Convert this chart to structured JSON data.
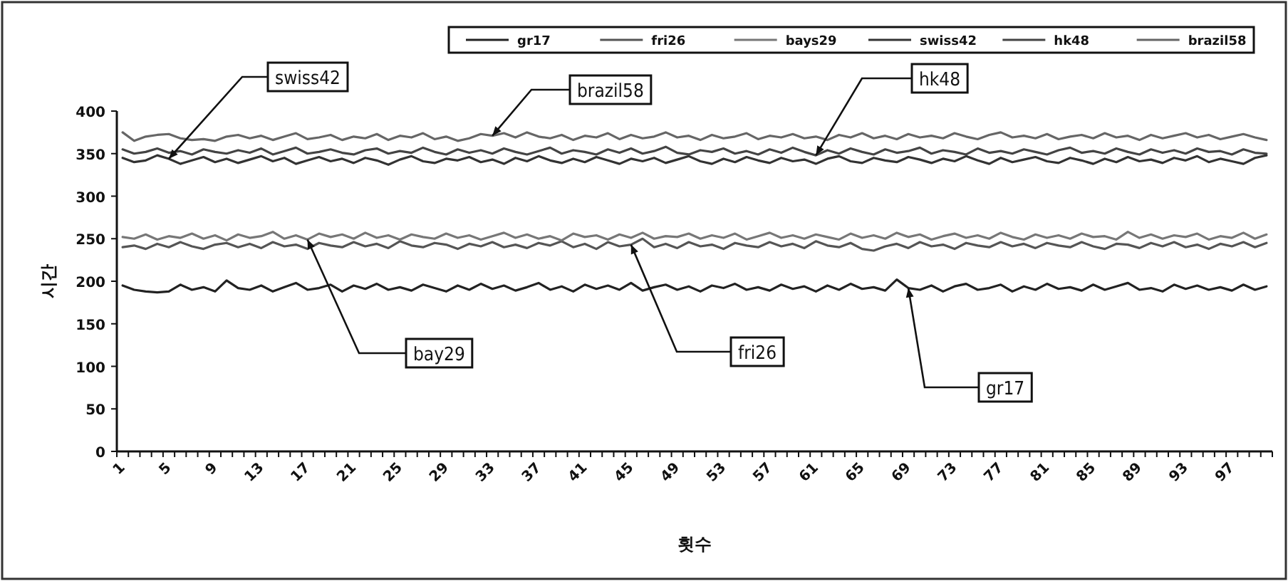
{
  "chart_data": {
    "type": "line",
    "xlabel": "횟수",
    "ylabel": "시간",
    "categories": [
      "1",
      null,
      null,
      null,
      "5",
      null,
      null,
      null,
      "9",
      null,
      null,
      null,
      "13",
      null,
      null,
      null,
      "17",
      null,
      null,
      null,
      "21",
      null,
      null,
      null,
      "25",
      null,
      null,
      null,
      "29",
      null,
      null,
      null,
      "33",
      null,
      null,
      null,
      "37",
      null,
      null,
      null,
      "41",
      null,
      null,
      null,
      "45",
      null,
      null,
      null,
      "49",
      null,
      null,
      null,
      "53",
      null,
      null,
      null,
      "57",
      null,
      null,
      null,
      "61",
      null,
      null,
      null,
      "65",
      null,
      null,
      null,
      "69",
      null,
      null,
      null,
      "73",
      null,
      null,
      null,
      "77",
      null,
      null,
      null,
      "81",
      null,
      null,
      null,
      "85",
      null,
      null,
      null,
      "89",
      null,
      null,
      null,
      "93",
      null,
      null,
      null,
      "97",
      null,
      null,
      null
    ],
    "ylim": [
      0,
      400
    ],
    "yticks": [
      0,
      50,
      100,
      150,
      200,
      250,
      300,
      350,
      400
    ],
    "legend": "top",
    "line_style": "solid",
    "series": [
      {
        "name": "gr17",
        "color": "#222222",
        "values": [
          195,
          190,
          188,
          187,
          188,
          196,
          190,
          193,
          188,
          201,
          192,
          190,
          195,
          188,
          193,
          198,
          190,
          192,
          196,
          188,
          195,
          191,
          197,
          190,
          193,
          189,
          196,
          192,
          188,
          195,
          190,
          197,
          191,
          195,
          189,
          193,
          198,
          190,
          194,
          188,
          196,
          191,
          195,
          190,
          198,
          189,
          193,
          196,
          190,
          194,
          188,
          195,
          192,
          197,
          190,
          193,
          189,
          196,
          191,
          194,
          188,
          195,
          190,
          197,
          191,
          193,
          189,
          202,
          192,
          190,
          195,
          188,
          194,
          197,
          190,
          192,
          196,
          188,
          194,
          190,
          197,
          191,
          193,
          189,
          196,
          190,
          194,
          198,
          190,
          192,
          188,
          196,
          191,
          195,
          190,
          193,
          189,
          196,
          190,
          194
        ]
      },
      {
        "name": "fri26",
        "color": "#555555",
        "values": [
          240,
          242,
          238,
          244,
          240,
          246,
          241,
          238,
          243,
          245,
          240,
          244,
          239,
          246,
          241,
          243,
          238,
          245,
          242,
          240,
          246,
          241,
          244,
          239,
          247,
          242,
          240,
          245,
          243,
          238,
          244,
          241,
          246,
          240,
          243,
          239,
          245,
          242,
          247,
          240,
          244,
          238,
          246,
          241,
          243,
          250,
          240,
          244,
          239,
          246,
          241,
          243,
          238,
          245,
          242,
          240,
          246,
          241,
          244,
          239,
          247,
          242,
          240,
          245,
          238,
          236,
          241,
          244,
          239,
          246,
          241,
          243,
          238,
          245,
          242,
          240,
          246,
          241,
          244,
          239,
          245,
          242,
          240,
          246,
          241,
          238,
          244,
          243,
          239,
          245,
          241,
          246,
          240,
          243,
          238,
          244,
          241,
          246,
          240,
          245
        ]
      },
      {
        "name": "bays29",
        "color": "#777777",
        "values": [
          252,
          250,
          255,
          249,
          253,
          251,
          256,
          250,
          254,
          248,
          255,
          251,
          253,
          258,
          250,
          254,
          249,
          256,
          252,
          255,
          250,
          257,
          251,
          254,
          249,
          255,
          252,
          250,
          256,
          251,
          254,
          249,
          253,
          257,
          251,
          255,
          250,
          253,
          248,
          256,
          252,
          254,
          249,
          255,
          251,
          257,
          250,
          253,
          252,
          256,
          250,
          254,
          251,
          256,
          249,
          253,
          257,
          251,
          254,
          250,
          255,
          252,
          249,
          256,
          251,
          254,
          250,
          257,
          252,
          255,
          249,
          253,
          256,
          251,
          254,
          250,
          257,
          252,
          249,
          255,
          251,
          254,
          250,
          256,
          252,
          253,
          249,
          258,
          251,
          255,
          250,
          254,
          252,
          256,
          249,
          253,
          251,
          257,
          250,
          255
        ]
      },
      {
        "name": "swiss42",
        "color": "#333333",
        "values": [
          345,
          340,
          342,
          348,
          344,
          338,
          342,
          346,
          340,
          344,
          339,
          343,
          347,
          341,
          345,
          338,
          342,
          346,
          341,
          344,
          339,
          345,
          342,
          337,
          343,
          347,
          341,
          339,
          344,
          342,
          346,
          340,
          343,
          338,
          345,
          341,
          347,
          342,
          339,
          344,
          340,
          346,
          342,
          338,
          344,
          341,
          345,
          339,
          343,
          347,
          341,
          338,
          344,
          340,
          346,
          342,
          339,
          345,
          341,
          343,
          338,
          344,
          347,
          341,
          339,
          345,
          342,
          340,
          346,
          343,
          339,
          344,
          341,
          347,
          342,
          338,
          345,
          340,
          343,
          346,
          341,
          339,
          345,
          342,
          338,
          344,
          340,
          346,
          341,
          343,
          339,
          345,
          342,
          347,
          340,
          344,
          341,
          338,
          345,
          348
        ]
      },
      {
        "name": "hk48",
        "color": "#444444",
        "values": [
          355,
          350,
          352,
          356,
          351,
          353,
          349,
          355,
          352,
          350,
          354,
          351,
          356,
          349,
          353,
          357,
          350,
          352,
          355,
          351,
          349,
          354,
          356,
          350,
          353,
          351,
          357,
          352,
          349,
          355,
          351,
          354,
          350,
          356,
          352,
          349,
          353,
          357,
          350,
          354,
          352,
          349,
          355,
          351,
          356,
          350,
          353,
          358,
          351,
          349,
          354,
          352,
          356,
          350,
          353,
          349,
          355,
          351,
          357,
          352,
          348,
          354,
          350,
          356,
          352,
          349,
          355,
          351,
          353,
          357,
          350,
          354,
          352,
          349,
          356,
          351,
          353,
          350,
          355,
          352,
          349,
          354,
          357,
          351,
          353,
          350,
          356,
          352,
          349,
          355,
          351,
          354,
          350,
          356,
          352,
          353,
          349,
          355,
          351,
          350
        ]
      },
      {
        "name": "brazil58",
        "color": "#666666",
        "values": [
          375,
          365,
          370,
          372,
          373,
          368,
          366,
          367,
          365,
          370,
          372,
          368,
          371,
          366,
          370,
          374,
          367,
          369,
          372,
          366,
          370,
          368,
          373,
          366,
          371,
          369,
          374,
          367,
          370,
          365,
          368,
          373,
          371,
          374,
          369,
          375,
          370,
          368,
          372,
          366,
          371,
          369,
          374,
          367,
          372,
          368,
          370,
          375,
          369,
          371,
          366,
          372,
          368,
          370,
          374,
          367,
          371,
          369,
          373,
          368,
          370,
          366,
          372,
          369,
          374,
          368,
          371,
          367,
          373,
          369,
          371,
          368,
          374,
          370,
          367,
          372,
          375,
          369,
          371,
          368,
          373,
          367,
          370,
          372,
          368,
          374,
          369,
          371,
          366,
          372,
          368,
          371,
          374,
          369,
          372,
          367,
          370,
          373,
          369,
          366
        ]
      }
    ],
    "annotations": [
      {
        "text": "swiss42",
        "x": "5",
        "y": 344
      },
      {
        "text": "brazil58",
        "x": "33",
        "y": 371
      },
      {
        "text": "hk48",
        "x": "61",
        "y": 348
      },
      {
        "text": "bay29",
        "x": "17",
        "y": 249
      },
      {
        "text": "fri26",
        "x": "45",
        "y": 243
      },
      {
        "text": "gr17",
        "x": "69",
        "y": 192
      }
    ]
  }
}
